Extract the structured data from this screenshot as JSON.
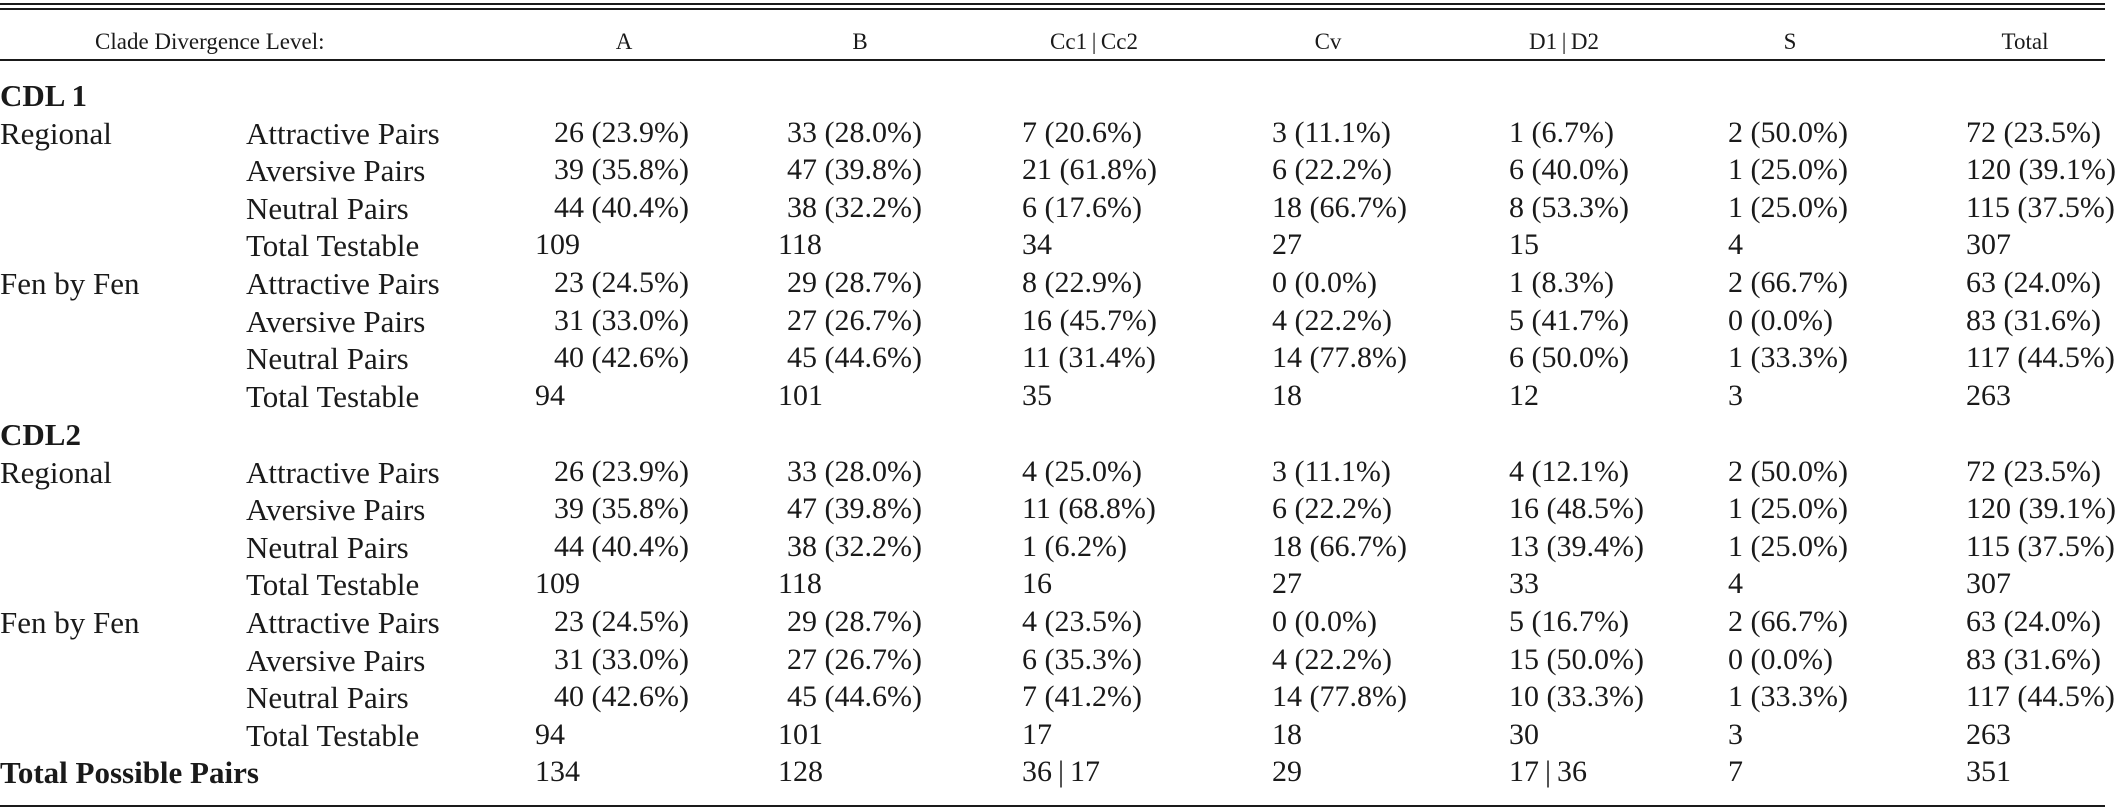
{
  "header": {
    "label": "Clade Divergence Level:",
    "columns": [
      "A",
      "B",
      "Cc1 | Cc2",
      "Cv",
      "D1 | D2",
      "S",
      "Total"
    ]
  },
  "sections": [
    {
      "title": "CDL 1",
      "groups": [
        {
          "label": "Regional",
          "rows": [
            {
              "label": "Attractive Pairs",
              "cells": [
                "26 (23.9%)",
                "33 (28.0%)",
                "7 (20.6%)",
                "3 (11.1%)",
                "1 (6.7%)",
                "2 (50.0%)",
                "72 (23.5%)"
              ]
            },
            {
              "label": "Aversive Pairs",
              "cells": [
                "39 (35.8%)",
                "47 (39.8%)",
                "21 (61.8%)",
                "6 (22.2%)",
                "6 (40.0%)",
                "1 (25.0%)",
                "120 (39.1%)"
              ]
            },
            {
              "label": "Neutral Pairs",
              "cells": [
                "44 (40.4%)",
                "38 (32.2%)",
                "6 (17.6%)",
                "18 (66.7%)",
                "8 (53.3%)",
                "1 (25.0%)",
                "115 (37.5%)"
              ]
            },
            {
              "label": "Total Testable",
              "cells": [
                "109",
                "118",
                "34",
                "27",
                "15",
                "4",
                "307"
              ]
            }
          ]
        },
        {
          "label": "Fen by Fen",
          "rows": [
            {
              "label": "Attractive Pairs",
              "cells": [
                "23 (24.5%)",
                "29 (28.7%)",
                "8 (22.9%)",
                "0 (0.0%)",
                "1 (8.3%)",
                "2 (66.7%)",
                "63 (24.0%)"
              ]
            },
            {
              "label": "Aversive Pairs",
              "cells": [
                "31 (33.0%)",
                "27 (26.7%)",
                "16 (45.7%)",
                "4 (22.2%)",
                "5 (41.7%)",
                "0 (0.0%)",
                "83 (31.6%)"
              ]
            },
            {
              "label": "Neutral Pairs",
              "cells": [
                "40 (42.6%)",
                "45 (44.6%)",
                "11 (31.4%)",
                "14 (77.8%)",
                "6 (50.0%)",
                "1 (33.3%)",
                "117 (44.5%)"
              ]
            },
            {
              "label": "Total Testable",
              "cells": [
                "94",
                "101",
                "35",
                "18",
                "12",
                "3",
                "263"
              ]
            }
          ]
        }
      ]
    },
    {
      "title": "CDL2",
      "groups": [
        {
          "label": "Regional",
          "rows": [
            {
              "label": "Attractive Pairs",
              "cells": [
                "26 (23.9%)",
                "33 (28.0%)",
                "4 (25.0%)",
                "3 (11.1%)",
                "4 (12.1%)",
                "2 (50.0%)",
                "72 (23.5%)"
              ]
            },
            {
              "label": "Aversive Pairs",
              "cells": [
                "39 (35.8%)",
                "47 (39.8%)",
                "11 (68.8%)",
                "6 (22.2%)",
                "16 (48.5%)",
                "1 (25.0%)",
                "120 (39.1%)"
              ]
            },
            {
              "label": "Neutral Pairs",
              "cells": [
                "44 (40.4%)",
                "38 (32.2%)",
                "1 (6.2%)",
                "18 (66.7%)",
                "13 (39.4%)",
                "1 (25.0%)",
                "115 (37.5%)"
              ]
            },
            {
              "label": "Total Testable",
              "cells": [
                "109",
                "118",
                "16",
                "27",
                "33",
                "4",
                "307"
              ]
            }
          ]
        },
        {
          "label": "Fen by Fen",
          "rows": [
            {
              "label": "Attractive Pairs",
              "cells": [
                "23 (24.5%)",
                "29 (28.7%)",
                "4 (23.5%)",
                "0 (0.0%)",
                "5 (16.7%)",
                "2 (66.7%)",
                "63 (24.0%)"
              ]
            },
            {
              "label": "Aversive Pairs",
              "cells": [
                "31 (33.0%)",
                "27 (26.7%)",
                "6 (35.3%)",
                "4 (22.2%)",
                "15 (50.0%)",
                "0 (0.0%)",
                "83 (31.6%)"
              ]
            },
            {
              "label": "Neutral Pairs",
              "cells": [
                "40 (42.6%)",
                "45 (44.6%)",
                "7 (41.2%)",
                "14 (77.8%)",
                "10 (33.3%)",
                "1 (33.3%)",
                "117 (44.5%)"
              ]
            },
            {
              "label": "Total Testable",
              "cells": [
                "94",
                "101",
                "17",
                "18",
                "30",
                "3",
                "263"
              ]
            }
          ]
        }
      ]
    }
  ],
  "footer": {
    "label": "Total Possible Pairs",
    "cells": [
      "134",
      "128",
      "36 | 17",
      "29",
      "17 | 36",
      "7",
      "351"
    ]
  }
}
